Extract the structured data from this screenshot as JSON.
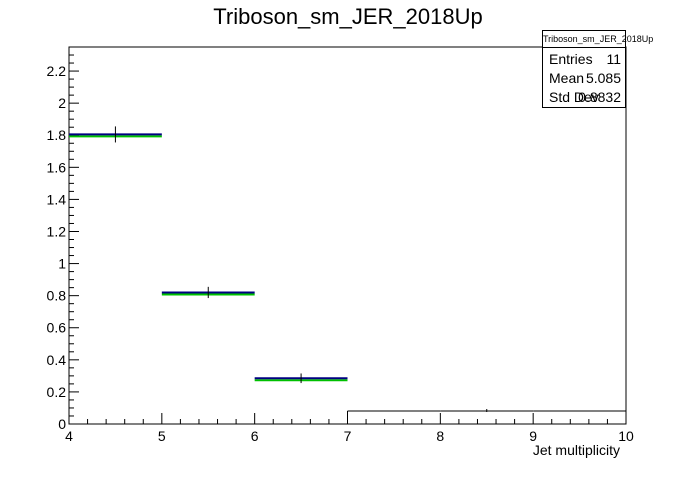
{
  "chart_data": {
    "type": "histogram",
    "title": "Triboson_sm_JER_2018Up",
    "xlabel": "Jet multiplicity",
    "ylabel": "",
    "xlim": [
      4,
      10
    ],
    "ylim": [
      0,
      2.35
    ],
    "x_ticks": [
      "4",
      "5",
      "6",
      "7",
      "8",
      "9",
      "10"
    ],
    "y_ticks": [
      "0",
      "0.2",
      "0.4",
      "0.6",
      "0.8",
      "1",
      "1.2",
      "1.4",
      "1.6",
      "1.8",
      "2",
      "2.2"
    ],
    "bins": [
      {
        "x_low": 4,
        "x_high": 5,
        "value": 1.805,
        "error": 0.05
      },
      {
        "x_low": 5,
        "x_high": 6,
        "value": 0.82,
        "error": 0.035
      },
      {
        "x_low": 6,
        "x_high": 7,
        "value": 0.285,
        "error": 0.03
      },
      {
        "x_low": 7,
        "x_high": 8,
        "value": 0.0,
        "error": 0.0
      },
      {
        "x_low": 8,
        "x_high": 9,
        "value": 0.0,
        "error": 0.01
      },
      {
        "x_low": 9,
        "x_high": 10,
        "value": 0.0,
        "error": 0.0
      }
    ],
    "colors": {
      "hist": "#000080",
      "overlay": "#00c000",
      "axis": "#000000"
    },
    "stats": {
      "title": "Triboson_sm_JER_2018Up",
      "rows": [
        {
          "label": "Entries",
          "value": "11"
        },
        {
          "label": "Mean",
          "value": "5.085"
        },
        {
          "label": "Std Dev",
          "value": "0.8832"
        }
      ]
    }
  }
}
